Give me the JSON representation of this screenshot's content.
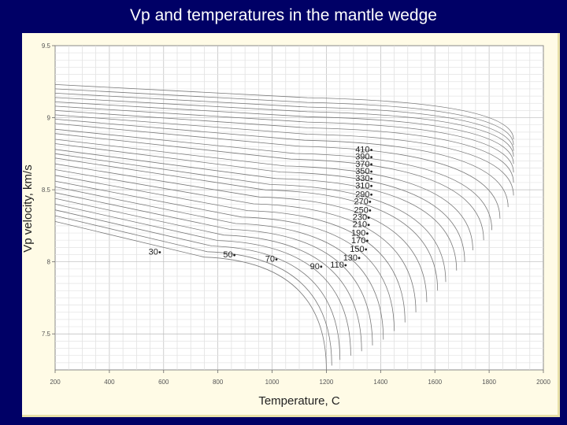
{
  "slide": {
    "title": "Vp and temperatures in the mantle wedge"
  },
  "chart_data": {
    "type": "line",
    "title": "",
    "xlabel": "Temperature, C",
    "ylabel": "Vp velocity, km/s",
    "xlim": [
      200,
      2000
    ],
    "ylim": [
      7.25,
      9.5
    ],
    "xticks": [
      200,
      400,
      600,
      800,
      1000,
      1200,
      1400,
      1600,
      1800,
      2000
    ],
    "yticks": [
      7.5,
      8,
      8.5,
      9,
      9.5
    ],
    "grid": true,
    "x_curve_start": 200,
    "curve_labels": [
      {
        "depth": "30",
        "temperature": 580,
        "velocity": 8.05
      },
      {
        "depth": "50",
        "temperature": 855,
        "velocity": 8.03
      },
      {
        "depth": "70",
        "temperature": 1010,
        "velocity": 8.0
      },
      {
        "depth": "90",
        "temperature": 1175,
        "velocity": 7.95
      },
      {
        "depth": "110",
        "temperature": 1265,
        "velocity": 7.96
      },
      {
        "depth": "130",
        "temperature": 1315,
        "velocity": 8.01
      },
      {
        "depth": "150",
        "temperature": 1340,
        "velocity": 8.07
      },
      {
        "depth": "170",
        "temperature": 1345,
        "velocity": 8.13
      },
      {
        "depth": "190",
        "temperature": 1345,
        "velocity": 8.18
      },
      {
        "depth": "210",
        "temperature": 1350,
        "velocity": 8.24
      },
      {
        "depth": "230",
        "temperature": 1350,
        "velocity": 8.29
      },
      {
        "depth": "250",
        "temperature": 1355,
        "velocity": 8.34
      },
      {
        "depth": "270",
        "temperature": 1355,
        "velocity": 8.4
      },
      {
        "depth": "290",
        "temperature": 1360,
        "velocity": 8.45
      },
      {
        "depth": "310",
        "temperature": 1360,
        "velocity": 8.51
      },
      {
        "depth": "330",
        "temperature": 1360,
        "velocity": 8.56
      },
      {
        "depth": "350",
        "temperature": 1360,
        "velocity": 8.61
      },
      {
        "depth": "370",
        "temperature": 1360,
        "velocity": 8.66
      },
      {
        "depth": "390",
        "temperature": 1360,
        "velocity": 8.71
      },
      {
        "depth": "410",
        "temperature": 1360,
        "velocity": 8.76
      }
    ],
    "series": [
      {
        "v_start": 8.28,
        "t_end": 1200,
        "v_end": 7.25
      },
      {
        "v_start": 8.32,
        "t_end": 1220,
        "v_end": 7.28
      },
      {
        "v_start": 8.36,
        "t_end": 1250,
        "v_end": 7.32
      },
      {
        "v_start": 8.4,
        "t_end": 1290,
        "v_end": 7.35
      },
      {
        "v_start": 8.44,
        "t_end": 1330,
        "v_end": 7.38
      },
      {
        "v_start": 8.48,
        "t_end": 1370,
        "v_end": 7.42
      },
      {
        "v_start": 8.52,
        "t_end": 1410,
        "v_end": 7.46
      },
      {
        "v_start": 8.56,
        "t_end": 1450,
        "v_end": 7.52
      },
      {
        "v_start": 8.6,
        "t_end": 1490,
        "v_end": 7.58
      },
      {
        "v_start": 8.64,
        "t_end": 1530,
        "v_end": 7.65
      },
      {
        "v_start": 8.68,
        "t_end": 1570,
        "v_end": 7.72
      },
      {
        "v_start": 8.72,
        "t_end": 1610,
        "v_end": 7.8
      },
      {
        "v_start": 8.75,
        "t_end": 1640,
        "v_end": 7.86
      },
      {
        "v_start": 8.78,
        "t_end": 1680,
        "v_end": 7.94
      },
      {
        "v_start": 8.82,
        "t_end": 1710,
        "v_end": 8.0
      },
      {
        "v_start": 8.85,
        "t_end": 1740,
        "v_end": 8.08
      },
      {
        "v_start": 8.89,
        "t_end": 1780,
        "v_end": 8.15
      },
      {
        "v_start": 8.92,
        "t_end": 1810,
        "v_end": 8.22
      },
      {
        "v_start": 8.96,
        "t_end": 1840,
        "v_end": 8.3
      },
      {
        "v_start": 8.99,
        "t_end": 1870,
        "v_end": 8.38
      },
      {
        "v_start": 9.02,
        "t_end": 1890,
        "v_end": 8.46
      },
      {
        "v_start": 9.05,
        "t_end": 1890,
        "v_end": 8.55
      },
      {
        "v_start": 9.08,
        "t_end": 1890,
        "v_end": 8.62
      },
      {
        "v_start": 9.11,
        "t_end": 1890,
        "v_end": 8.68
      },
      {
        "v_start": 9.14,
        "t_end": 1890,
        "v_end": 8.73
      },
      {
        "v_start": 9.17,
        "t_end": 1890,
        "v_end": 8.77
      },
      {
        "v_start": 9.2,
        "t_end": 1890,
        "v_end": 8.81
      },
      {
        "v_start": 9.23,
        "t_end": 1890,
        "v_end": 8.85
      }
    ]
  }
}
